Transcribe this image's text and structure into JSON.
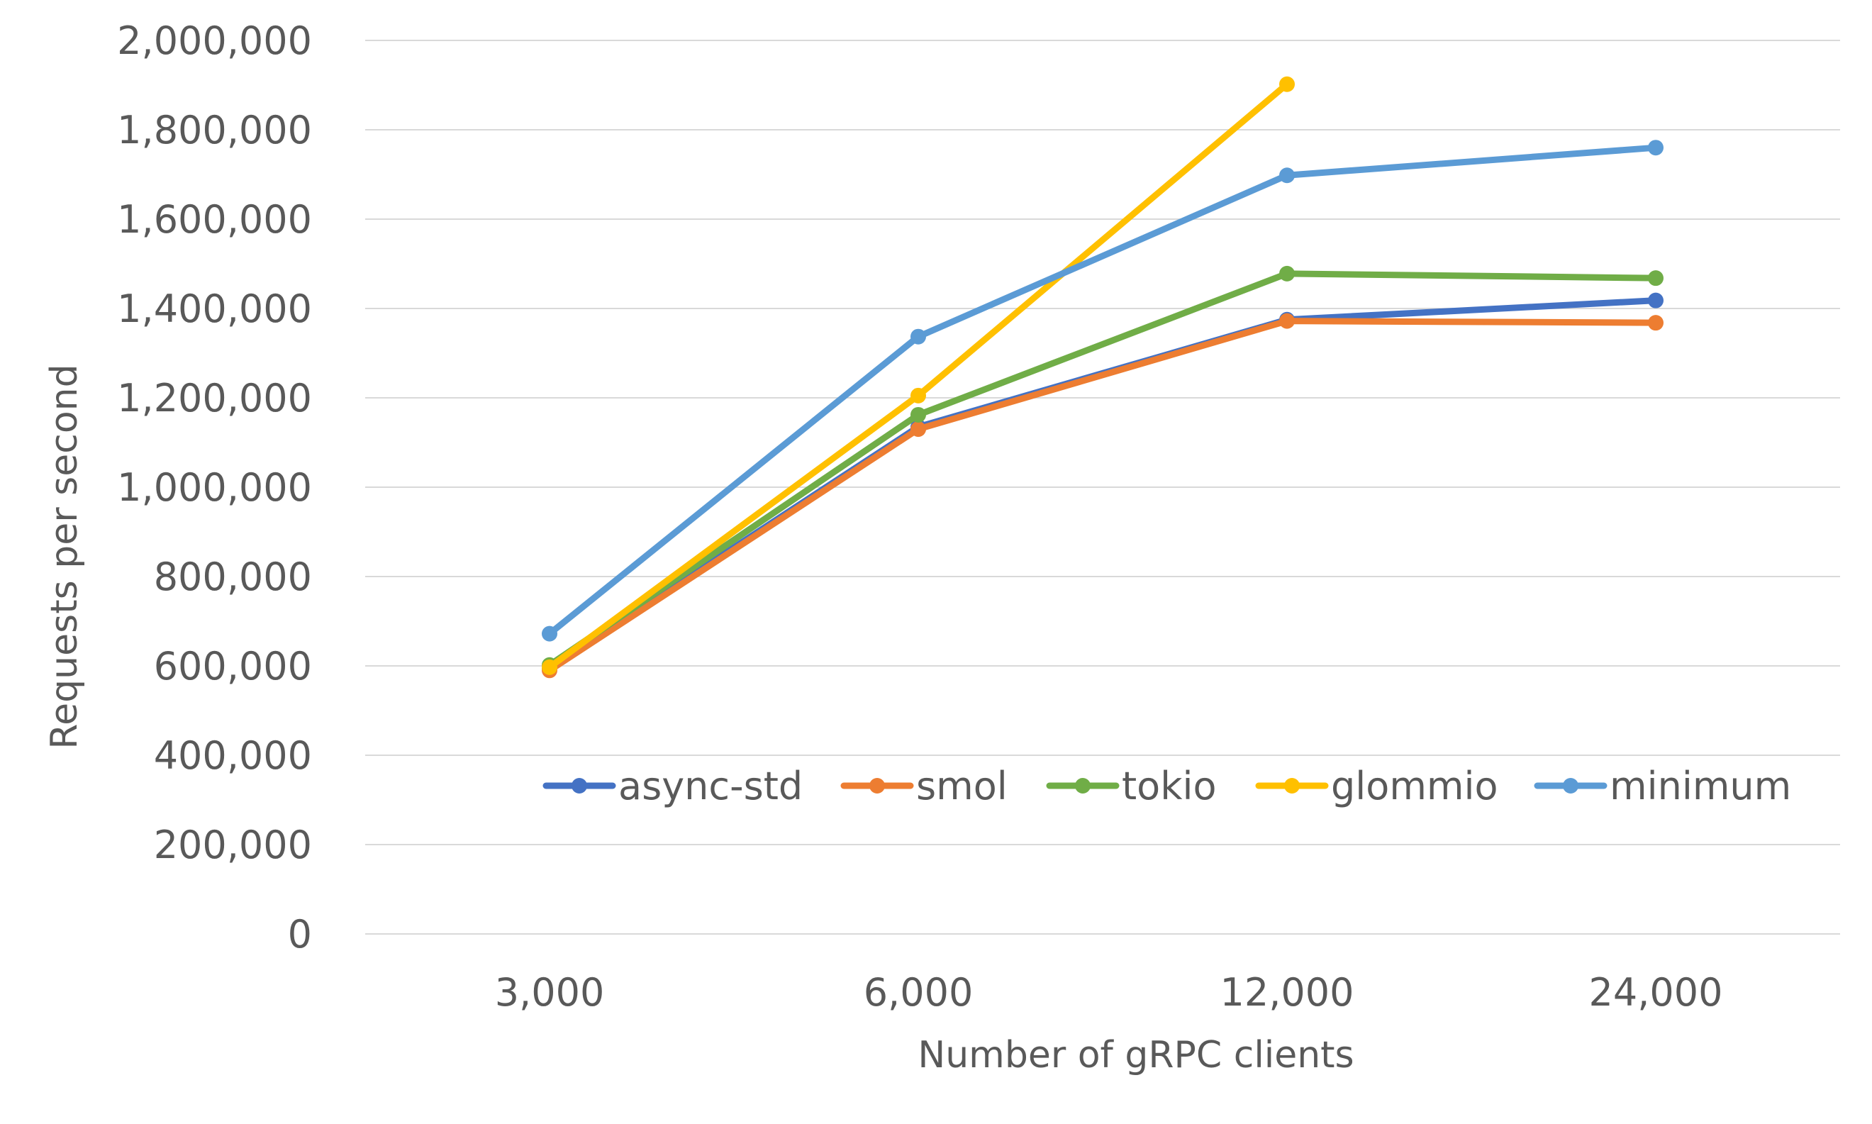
{
  "chart_data": {
    "type": "line",
    "categories": [
      "3,000",
      "6,000",
      "12,000",
      "24,000"
    ],
    "xlabel": "Number of gRPC clients",
    "ylabel": "Requests per second",
    "ylim": [
      0,
      2000000
    ],
    "yticks": [
      "0",
      "200,000",
      "400,000",
      "600,000",
      "800,000",
      "1,000,000",
      "1,200,000",
      "1,400,000",
      "1,600,000",
      "1,800,000",
      "2,000,000"
    ],
    "grid": true,
    "legend_position": "inside-bottom",
    "series": [
      {
        "name": "async-std",
        "color": "#4472C4",
        "values": [
          595000,
          1135000,
          1375000,
          1418000
        ]
      },
      {
        "name": "smol",
        "color": "#ED7D31",
        "values": [
          590000,
          1130000,
          1372000,
          1368000
        ]
      },
      {
        "name": "tokio",
        "color": "#70AD47",
        "values": [
          602000,
          1162000,
          1478000,
          1468000
        ]
      },
      {
        "name": "glommio",
        "color": "#FFC000",
        "values": [
          597000,
          1205000,
          1902000,
          null
        ]
      },
      {
        "name": "minimum",
        "color": "#5B9BD5",
        "values": [
          672000,
          1337000,
          1698000,
          1760000
        ]
      }
    ]
  }
}
